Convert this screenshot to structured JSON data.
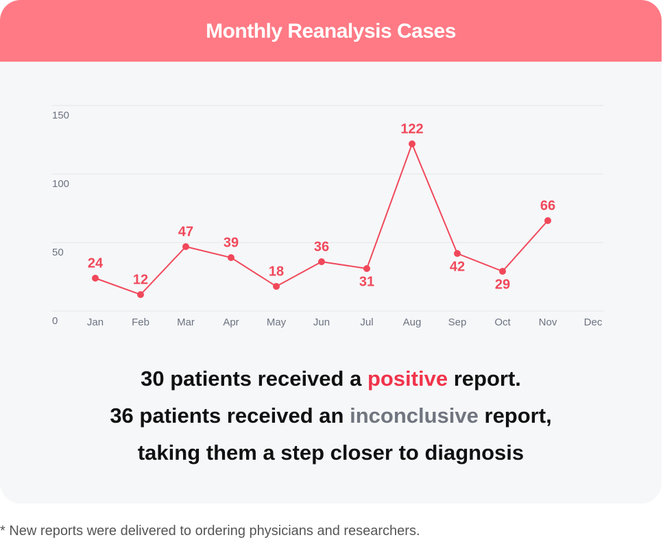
{
  "chart_data": {
    "type": "line",
    "title": "Monthly Reanalysis Cases",
    "categories": [
      "Jan",
      "Feb",
      "Mar",
      "Apr",
      "May",
      "Jun",
      "Jul",
      "Aug",
      "Sep",
      "Oct",
      "Nov",
      "Dec"
    ],
    "values": [
      24,
      12,
      47,
      39,
      18,
      36,
      31,
      122,
      42,
      29,
      66,
      null
    ],
    "color": "#f0485a",
    "ylim": [
      0,
      150
    ],
    "yticks": [
      0,
      50,
      100,
      150
    ],
    "grid": true
  },
  "summary": [
    [
      "30 patients received a ",
      "positive",
      " report."
    ],
    [
      "36 patients received an ",
      "inconclusive",
      " report,"
    ],
    [
      "taking them a step closer to diagnosis"
    ]
  ],
  "footnote": "* New reports were delivered to ordering physicians and researchers."
}
